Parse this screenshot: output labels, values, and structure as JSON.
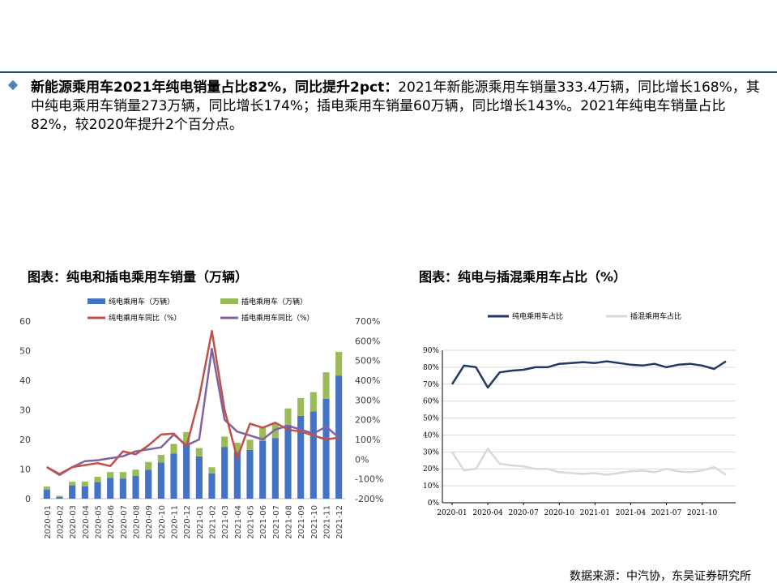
{
  "summary": {
    "lead": "新能源乘用车2021年纯电销量占比82%，同比提升2pct：",
    "body": "2021年新能源乘用车销量333.4万辆，同比增长168%，其中纯电乘用车销量273万辆，同比增长174%；插电乘用车销量60万辆，同比增长143%。2021年纯电车销量占比82%，较2020年提升2个百分点。"
  },
  "left_title": "图表：纯电和插电乘用车销量（万辆）",
  "right_title": "图表：纯电与插混乘用车占比（%）",
  "source": "数据来源：中汽协，东吴证券研究所",
  "colors": {
    "bev_bar": "#4472c4",
    "phev_bar": "#9bbb59",
    "bev_yoy": "#c0504d",
    "phev_yoy": "#8064a2",
    "bev_share": "#1f3864",
    "phev_share": "#d9d9d9",
    "rule": "#1f4e79"
  },
  "chart_data": [
    {
      "type": "bar",
      "categories": [
        "2020-01",
        "2020-02",
        "2020-03",
        "2020-04",
        "2020-05",
        "2020-06",
        "2020-07",
        "2020-08",
        "2020-09",
        "2020-10",
        "2020-11",
        "2020-12",
        "2021-01",
        "2021-02",
        "2021-03",
        "2021-04",
        "2021-05",
        "2021-06",
        "2021-07",
        "2021-08",
        "2021-09",
        "2021-10",
        "2021-11",
        "2021-12"
      ],
      "series": [
        {
          "name": "纯电乘用车（万辆）",
          "kind": "bar",
          "stack": "sales",
          "values": [
            3.0,
            0.6,
            4.5,
            4.2,
            5.6,
            7.0,
            6.8,
            7.7,
            9.8,
            12.2,
            15.2,
            18.5,
            14.3,
            8.5,
            17.5,
            15.8,
            16.5,
            19.5,
            20.5,
            25.0,
            28.0,
            29.5,
            33.7,
            41.6
          ]
        },
        {
          "name": "插电乘用车（万辆）",
          "kind": "bar",
          "stack": "sales",
          "values": [
            1.1,
            0.4,
            1.2,
            1.6,
            1.8,
            2.0,
            2.2,
            2.1,
            2.6,
            2.6,
            3.3,
            4.0,
            2.8,
            2.1,
            3.5,
            3.1,
            3.4,
            4.5,
            5.0,
            5.5,
            6.0,
            6.5,
            9.0,
            8.0
          ]
        },
        {
          "name": "纯电乘用车同比（%）",
          "kind": "line",
          "axis": "right",
          "values": [
            -40,
            -75,
            -40,
            -30,
            -20,
            -35,
            40,
            25,
            70,
            125,
            130,
            65,
            310,
            650,
            250,
            5,
            180,
            160,
            185,
            150,
            140,
            120,
            100,
            110
          ]
        },
        {
          "name": "插电乘用车同比（%）",
          "kind": "line",
          "axis": "right",
          "values": [
            -40,
            -80,
            -40,
            -10,
            -5,
            5,
            15,
            40,
            50,
            60,
            125,
            70,
            100,
            560,
            200,
            140,
            120,
            100,
            150,
            170,
            150,
            130,
            165,
            110
          ]
        }
      ],
      "ylim": [
        0,
        60
      ],
      "yticks": [
        0,
        10,
        20,
        30,
        40,
        50,
        60
      ],
      "y2lim": [
        -200,
        700
      ],
      "y2ticks": [
        "-200%",
        "-100%",
        "0%",
        "100%",
        "200%",
        "300%",
        "400%",
        "500%",
        "600%",
        "700%"
      ],
      "legend": "top"
    },
    {
      "type": "line",
      "x": [
        "2020-01",
        "2020-02",
        "2020-03",
        "2020-04",
        "2020-05",
        "2020-06",
        "2020-07",
        "2020-08",
        "2020-09",
        "2020-10",
        "2020-11",
        "2020-12",
        "2021-01",
        "2021-02",
        "2021-03",
        "2021-04",
        "2021-05",
        "2021-06",
        "2021-07",
        "2021-08",
        "2021-09",
        "2021-10",
        "2021-11",
        "2021-12"
      ],
      "xticks": [
        "2020-01",
        "2020-04",
        "2020-07",
        "2020-10",
        "2021-01",
        "2021-04",
        "2021-07",
        "2021-10"
      ],
      "series": [
        {
          "name": "纯电乘用车占比",
          "values": [
            70,
            81,
            80,
            68,
            77,
            78,
            78.5,
            80,
            80,
            82,
            82.5,
            83,
            82.5,
            83.5,
            82.5,
            81.5,
            81,
            82,
            80,
            81.5,
            82,
            81,
            79,
            83.5
          ]
        },
        {
          "name": "插混乘用车占比",
          "values": [
            30,
            19,
            20,
            32,
            23,
            22,
            21.5,
            20,
            20,
            18,
            17.5,
            17,
            17.5,
            16.5,
            17.5,
            18.5,
            19,
            18,
            20,
            18.5,
            18,
            19,
            21,
            16.5
          ]
        }
      ],
      "ylim": [
        0,
        90
      ],
      "yticks": [
        "0%",
        "10%",
        "20%",
        "30%",
        "40%",
        "50%",
        "60%",
        "70%",
        "80%",
        "90%"
      ],
      "legend": "top"
    }
  ]
}
